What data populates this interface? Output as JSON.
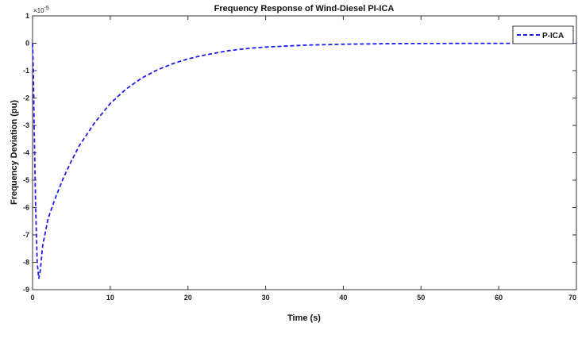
{
  "chart_data": {
    "type": "line",
    "title": "Frequency Response of Wind-Diesel PI-ICA",
    "xlabel": "Time (s)",
    "ylabel": "Frequency Deviation (pu)",
    "y_multiplier": "×10",
    "y_multiplier_exponent": "-5",
    "xlim": [
      0,
      70
    ],
    "ylim": [
      -9,
      1
    ],
    "x_ticks": [
      "0",
      "10",
      "20",
      "30",
      "40",
      "50",
      "60",
      "70"
    ],
    "y_ticks": [
      "1",
      "0",
      "-1",
      "-2",
      "-3",
      "-4",
      "-5",
      "-6",
      "-7",
      "-8",
      "-9"
    ],
    "legend_position": "top-right",
    "grid": false,
    "series": [
      {
        "name": "P-ICA",
        "color": "#1f1fe6",
        "line_style": "dashed",
        "x": [
          0,
          0.1,
          0.2,
          0.4,
          0.6,
          0.8,
          1.0,
          1.3,
          2,
          3,
          4,
          5,
          6,
          8,
          10,
          12,
          14,
          16,
          18,
          20,
          22,
          25,
          28,
          30,
          35,
          40,
          45,
          50,
          55,
          60,
          65,
          70
        ],
        "y": [
          0,
          -1.0,
          -3.0,
          -6.0,
          -8.0,
          -8.6,
          -8.3,
          -7.4,
          -6.4,
          -5.6,
          -4.9,
          -4.3,
          -3.75,
          -2.9,
          -2.2,
          -1.68,
          -1.28,
          -0.98,
          -0.75,
          -0.57,
          -0.44,
          -0.28,
          -0.18,
          -0.14,
          -0.07,
          -0.035,
          -0.018,
          -0.009,
          -0.005,
          -0.003,
          -0.002,
          -0.001
        ]
      }
    ]
  }
}
